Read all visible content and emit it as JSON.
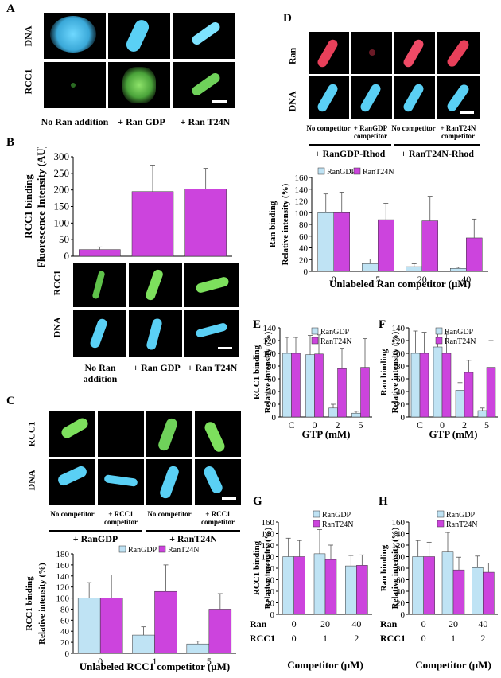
{
  "colors": {
    "ran_gdp": "#bfe3f4",
    "ran_t24n": "#cc44dd",
    "dna_stain": "#5ad0f5",
    "rcc1_stain": "#6fd15a",
    "ran_stain": "#e8405a"
  },
  "panels": {
    "A": {
      "letter": "A",
      "rows": [
        "DNA",
        "RCC1"
      ],
      "columns": [
        "No Ran addition",
        "+ Ran GDP",
        "+ Ran T24N"
      ]
    },
    "B": {
      "letter": "B",
      "rows": [
        "RCC1",
        "DNA"
      ],
      "columns": [
        "No Ran addition",
        "+ Ran GDP",
        "+ Ran T24N"
      ]
    },
    "C": {
      "letter": "C",
      "rows": [
        "RCC1",
        "DNA"
      ],
      "columns": [
        "No competitor",
        "+ RCC1 competitor",
        "No competitor",
        "+ RCC1 competitor"
      ],
      "groups": [
        "+ RanGDP",
        "+ RanT24N"
      ]
    },
    "D": {
      "letter": "D",
      "rows": [
        "Ran",
        "DNA"
      ],
      "columns": [
        "No competitor",
        "+ RanGDP competitor",
        "No competitor",
        "+ RanT24N competitor"
      ],
      "groups": [
        "+ RanGDP-Rhod",
        "+ RanT24N-Rhod"
      ]
    },
    "E": {
      "letter": "E"
    },
    "F": {
      "letter": "F"
    },
    "G": {
      "letter": "G"
    },
    "H": {
      "letter": "H"
    }
  },
  "chart_data": [
    {
      "id": "B",
      "type": "bar",
      "ylabel": "RCC1 binding Fluorescence Intensity (AU)",
      "categories": [
        "No Ran addition",
        "+ Ran GDP",
        "+ Ran T24N"
      ],
      "series": [
        {
          "name": "RCC1",
          "values": [
            20,
            195,
            203
          ],
          "errors": [
            8,
            80,
            62
          ]
        }
      ],
      "ylim": [
        0,
        300
      ],
      "yticks": [
        0,
        50,
        100,
        150,
        200,
        250,
        300
      ]
    },
    {
      "id": "C",
      "type": "bar",
      "ylabel": "RCC1 binding Relative intensity (%)",
      "xlabel": "Unlabeled RCC1 competitor (μM)",
      "categories": [
        "0",
        "1",
        "5"
      ],
      "series": [
        {
          "name": "RanGDP",
          "values": [
            100,
            33,
            17
          ],
          "errors": [
            28,
            15,
            5
          ]
        },
        {
          "name": "RanT24N",
          "values": [
            100,
            112,
            80
          ],
          "errors": [
            42,
            48,
            28
          ]
        }
      ],
      "ylim": [
        0,
        180
      ],
      "yticks": [
        0,
        20,
        40,
        60,
        80,
        100,
        120,
        140,
        160,
        180
      ],
      "legend": "top"
    },
    {
      "id": "D",
      "type": "bar",
      "ylabel": "Ran binding Relative intensity (%)",
      "xlabel": "Unlabeled Ran competitor (μM)",
      "categories": [
        "0",
        "5",
        "20",
        "40"
      ],
      "series": [
        {
          "name": "RanGDP",
          "values": [
            100,
            13,
            8,
            5
          ],
          "errors": [
            32,
            8,
            5,
            2
          ]
        },
        {
          "name": "RanT24N",
          "values": [
            100,
            88,
            86,
            57
          ],
          "errors": [
            35,
            28,
            42,
            32
          ]
        }
      ],
      "ylim": [
        0,
        160
      ],
      "yticks": [
        0,
        20,
        40,
        60,
        80,
        100,
        120,
        140,
        160
      ],
      "legend": "top"
    },
    {
      "id": "E",
      "type": "bar",
      "ylabel": "RCC1 binding Relative intensity (%)",
      "xlabel": "GTP (mM)",
      "categories": [
        "C",
        "0",
        "2",
        "5"
      ],
      "series": [
        {
          "name": "RanGDP",
          "values": [
            100,
            98,
            14,
            6
          ],
          "errors": [
            25,
            30,
            6,
            3
          ]
        },
        {
          "name": "RanT24N",
          "values": [
            100,
            99,
            76,
            78
          ],
          "errors": [
            25,
            30,
            32,
            45
          ]
        }
      ],
      "ylim": [
        0,
        140
      ],
      "yticks": [
        0,
        20,
        40,
        60,
        80,
        100,
        120,
        140
      ],
      "legend": "top-right"
    },
    {
      "id": "F",
      "type": "bar",
      "ylabel": "Ran binding Relative intensity (%)",
      "xlabel": "GTP (mM)",
      "categories": [
        "C",
        "0",
        "2",
        "5"
      ],
      "series": [
        {
          "name": "RanGDP",
          "values": [
            100,
            110,
            42,
            10
          ],
          "errors": [
            35,
            22,
            12,
            4
          ]
        },
        {
          "name": "RanT24N",
          "values": [
            100,
            100,
            70,
            78
          ],
          "errors": [
            33,
            30,
            19,
            42
          ]
        }
      ],
      "ylim": [
        0,
        140
      ],
      "yticks": [
        0,
        20,
        40,
        60,
        80,
        100,
        120,
        140
      ],
      "legend": "top-right"
    },
    {
      "id": "G",
      "type": "bar",
      "ylabel": "RCC1 binding Relative intensity (%)",
      "xlabel": "Competitor (μM)",
      "categories": [
        "0",
        "1",
        "2"
      ],
      "x_rows": [
        {
          "label": "Ran",
          "values": [
            "0",
            "20",
            "40"
          ]
        },
        {
          "label": "RCC1",
          "values": [
            "0",
            "1",
            "2"
          ]
        }
      ],
      "series": [
        {
          "name": "RanGDP",
          "values": [
            100,
            105,
            84
          ],
          "errors": [
            32,
            42,
            18
          ]
        },
        {
          "name": "RanT24N",
          "values": [
            100,
            95,
            85
          ],
          "errors": [
            28,
            25,
            18
          ]
        }
      ],
      "ylim": [
        0,
        160
      ],
      "yticks": [
        0,
        20,
        40,
        60,
        80,
        100,
        120,
        140,
        160
      ],
      "legend": "top-right"
    },
    {
      "id": "H",
      "type": "bar",
      "ylabel": "Ran binding Relative intensity (%)",
      "xlabel": "Competitor (μM)",
      "categories": [
        "0",
        "1",
        "2"
      ],
      "x_rows": [
        {
          "label": "Ran",
          "values": [
            "0",
            "20",
            "40"
          ]
        },
        {
          "label": "RCC1",
          "values": [
            "0",
            "1",
            "2"
          ]
        }
      ],
      "series": [
        {
          "name": "RanGDP",
          "values": [
            100,
            108,
            81
          ],
          "errors": [
            28,
            34,
            20
          ]
        },
        {
          "name": "RanT24N",
          "values": [
            100,
            77,
            73
          ],
          "errors": [
            25,
            22,
            16
          ]
        }
      ],
      "ylim": [
        0,
        160
      ],
      "yticks": [
        0,
        20,
        40,
        60,
        80,
        100,
        120,
        140,
        160
      ],
      "legend": "top-right"
    }
  ]
}
